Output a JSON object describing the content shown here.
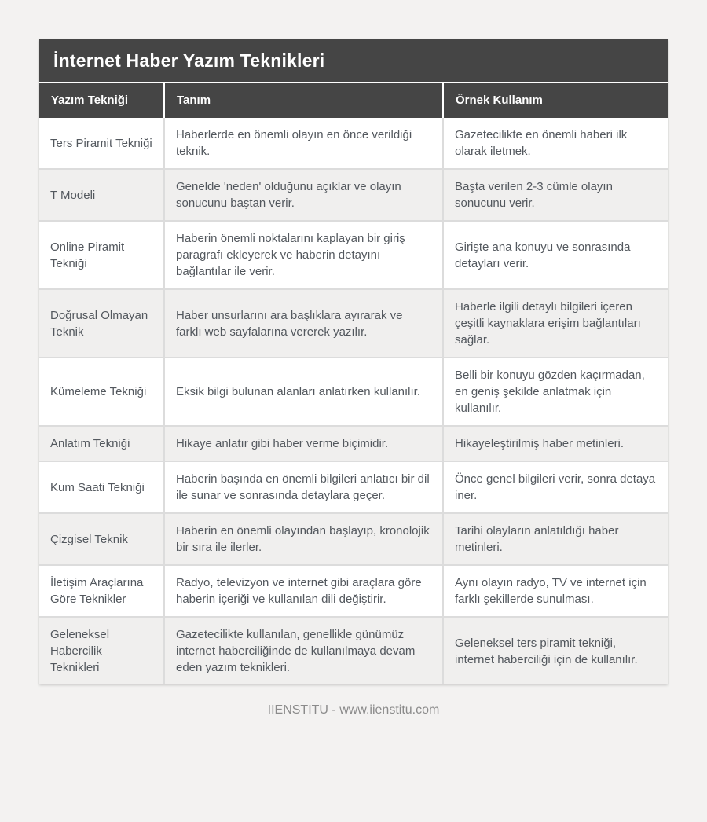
{
  "title": "İnternet Haber Yazım Teknikleri",
  "columns": [
    {
      "label": "Yazım Tekniği"
    },
    {
      "label": "Tanım"
    },
    {
      "label": "Örnek Kullanım"
    }
  ],
  "rows": [
    {
      "technique": "Ters Piramit Tekniği",
      "definition": "Haberlerde en önemli olayın en önce verildiği teknik.",
      "example": "Gazetecilikte en önemli haberi ilk olarak iletmek."
    },
    {
      "technique": "T Modeli",
      "definition": "Genelde 'neden' olduğunu açıklar ve olayın sonucunu baştan verir.",
      "example": "Başta verilen 2-3 cümle olayın sonucunu verir."
    },
    {
      "technique": "Online Piramit Tekniği",
      "definition": "Haberin önemli noktalarını kaplayan bir giriş paragrafı ekleyerek ve haberin detayını bağlantılar ile verir.",
      "example": "Girişte ana konuyu ve sonrasında detayları verir."
    },
    {
      "technique": "Doğrusal Olmayan Teknik",
      "definition": "Haber unsurlarını ara başlıklara ayırarak ve farklı web sayfalarına vererek yazılır.",
      "example": "Haberle ilgili detaylı bilgileri içeren çeşitli kaynaklara erişim bağlantıları sağlar."
    },
    {
      "technique": "Kümeleme Tekniği",
      "definition": "Eksik bilgi bulunan alanları anlatırken kullanılır.",
      "example": "Belli bir konuyu gözden kaçırmadan, en geniş şekilde anlatmak için kullanılır."
    },
    {
      "technique": "Anlatım Tekniği",
      "definition": "Hikaye anlatır gibi haber verme biçimidir.",
      "example": "Hikayeleştirilmiş haber metinleri."
    },
    {
      "technique": "Kum Saati Tekniği",
      "definition": "Haberin başında en önemli bilgileri anlatıcı bir dil ile sunar ve sonrasında detaylara geçer.",
      "example": "Önce genel bilgileri verir, sonra detaya iner."
    },
    {
      "technique": "Çizgisel Teknik",
      "definition": "Haberin en önemli olayından başlayıp, kronolojik bir sıra ile ilerler.",
      "example": "Tarihi olayların anlatıldığı haber metinleri."
    },
    {
      "technique": "İletişim Araçlarına Göre Teknikler",
      "definition": "Radyo, televizyon ve internet gibi araçlara göre haberin içeriği ve kullanılan dili değiştirir.",
      "example": "Aynı olayın radyo, TV ve internet için farklı şekillerde sunulması."
    },
    {
      "technique": "Geleneksel Habercilik Teknikleri",
      "definition": "Gazetecilikte kullanılan, genellikle günümüz internet haberciliğinde de kullanılmaya devam eden yazım teknikleri.",
      "example": "Geleneksel ters piramit tekniği, internet haberciliği için de kullanılır."
    }
  ],
  "footer": {
    "text": "IIENSTITU - www.iienstitu.com"
  },
  "colors": {
    "header_bg": "#454545",
    "header_text": "#ffffff",
    "row_bg": "#ffffff",
    "row_alt_bg": "#f0efee",
    "cell_border": "#dcdcdc",
    "body_text": "#53585e",
    "page_bg": "#f3f2f1",
    "footer_text": "#8b8b8b"
  }
}
